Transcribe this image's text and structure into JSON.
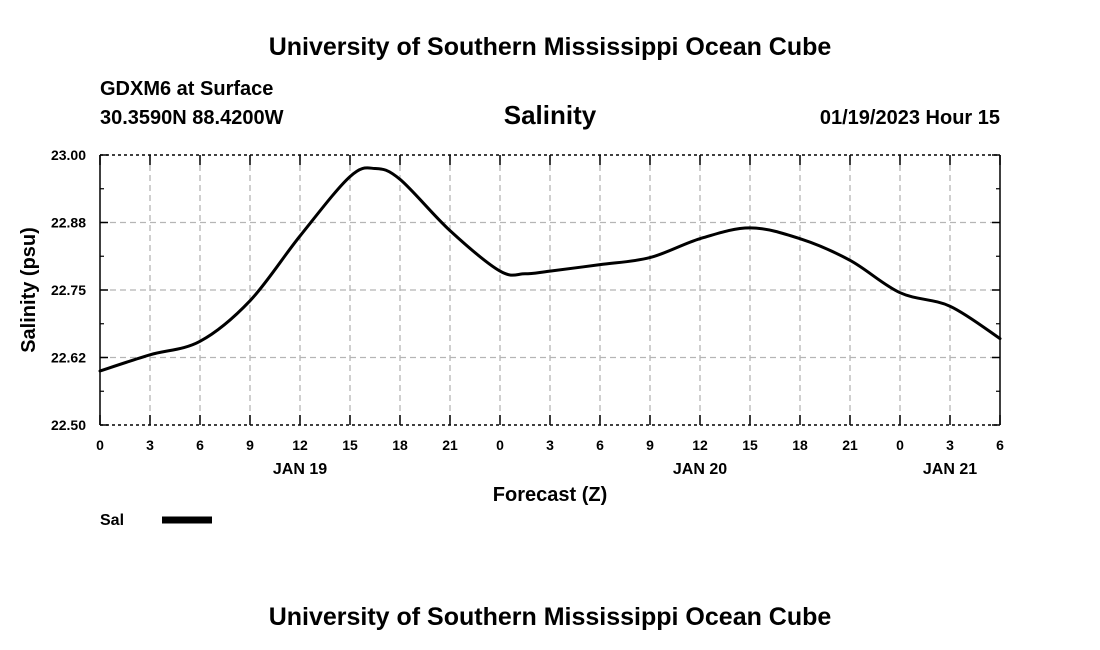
{
  "header": {
    "top_title": "University of Southern Mississippi Ocean Cube",
    "station": "GDXM6 at Surface",
    "coords": "30.3590N  88.4200W",
    "datetime": "01/19/2023 Hour 15",
    "bottom_title": "University of Southern Mississippi Ocean Cube"
  },
  "chart_data": {
    "type": "line",
    "title": "Salinity",
    "xlabel": "Forecast (Z)",
    "ylabel": "Salinity (psu)",
    "ylim": [
      22.5,
      23.0
    ],
    "xlim": [
      0,
      54
    ],
    "grid": true,
    "yticks": [
      "22.50",
      "22.62",
      "22.75",
      "22.88",
      "23.00"
    ],
    "ytick_values": [
      22.5,
      22.625,
      22.75,
      22.875,
      23.0
    ],
    "xticks": [
      "0",
      "3",
      "6",
      "9",
      "12",
      "15",
      "18",
      "21",
      "0",
      "3",
      "6",
      "9",
      "12",
      "15",
      "18",
      "21",
      "0",
      "3",
      "6"
    ],
    "date_labels": [
      {
        "label": "JAN 19",
        "at_hour": 12
      },
      {
        "label": "JAN 20",
        "at_hour": 36
      },
      {
        "label": "JAN 21",
        "at_hour": 51
      }
    ],
    "series": [
      {
        "name": "Sal",
        "color": "#000000",
        "x": [
          0,
          3,
          6,
          9,
          12,
          15,
          16.5,
          18,
          21,
          24,
          25.5,
          27,
          30,
          33,
          36,
          39,
          42,
          45,
          48,
          51,
          54
        ],
        "values": [
          22.6,
          22.63,
          22.655,
          22.73,
          22.85,
          22.96,
          22.975,
          22.955,
          22.86,
          22.785,
          22.78,
          22.785,
          22.797,
          22.81,
          22.845,
          22.865,
          22.845,
          22.805,
          22.745,
          22.72,
          22.66
        ]
      }
    ],
    "legend": {
      "label": "Sal",
      "position": "bottom-left"
    }
  }
}
